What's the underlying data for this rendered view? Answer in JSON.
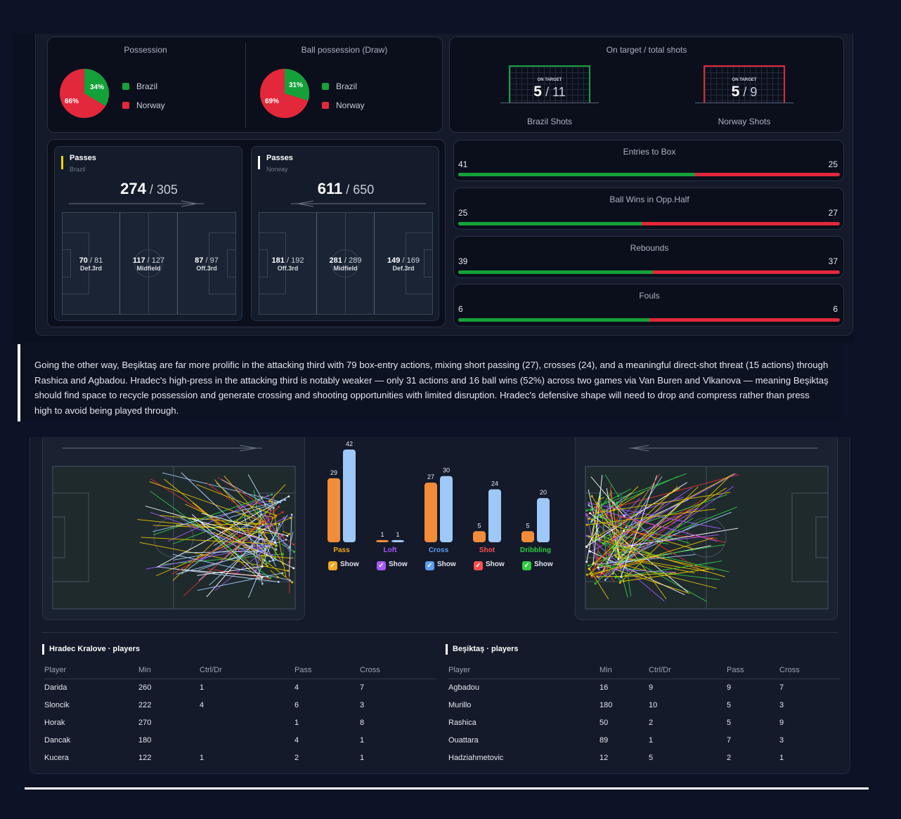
{
  "possession": {
    "title": "Possession",
    "brazil_pct": "34%",
    "norway_pct": "66%",
    "legend_brazil": "Brazil",
    "legend_norway": "Norway"
  },
  "ball_possession": {
    "title": "Ball possession (Draw)",
    "brazil_pct": "31%",
    "norway_pct": "69%",
    "legend_brazil": "Brazil",
    "legend_norway": "Norway"
  },
  "shots": {
    "title": "On target / total shots",
    "brazil": {
      "badge": "ON TARGET",
      "on_target": "5",
      "total": "11",
      "label": "Brazil Shots"
    },
    "norway": {
      "badge": "ON TARGET",
      "on_target": "5",
      "total": "9",
      "label": "Norway Shots"
    }
  },
  "passes_brazil": {
    "title": "Passes",
    "team": "Brazil",
    "completed": "274",
    "total": "305",
    "zones": [
      {
        "val": "70",
        "of": "81",
        "label": "Def.3rd"
      },
      {
        "val": "117",
        "of": "127",
        "label": "Midfield"
      },
      {
        "val": "87",
        "of": "97",
        "label": "Off.3rd"
      }
    ]
  },
  "passes_norway": {
    "title": "Passes",
    "team": "Norway",
    "completed": "611",
    "total": "650",
    "zones": [
      {
        "val": "181",
        "of": "192",
        "label": "Off.3rd"
      },
      {
        "val": "281",
        "of": "289",
        "label": "Midfield"
      },
      {
        "val": "149",
        "of": "169",
        "label": "Def.3rd"
      }
    ]
  },
  "stat_bars": [
    {
      "title": "Entries to Box",
      "left": "41",
      "right": "25",
      "green_fraction": 0.62
    },
    {
      "title": "Ball Wins in Opp.Half",
      "left": "25",
      "right": "27",
      "green_fraction": 0.48
    },
    {
      "title": "Rebounds",
      "left": "39",
      "right": "37",
      "green_fraction": 0.51
    },
    {
      "title": "Fouls",
      "left": "6",
      "right": "6",
      "green_fraction": 0.5
    }
  ],
  "paragraph": "Going the other way, Beşiktaş are far more prolific in the attacking third with 79 box-entry actions, mixing short passing (27), crosses (24), and a meaningful direct-shot threat (15 actions) through Rashica and Agbadou. Hradec's high-press in the attacking third is notably weaker — only 31 actions and 16 ball wins (52%) across two games via Van Buren and Vlkanova — meaning Beşiktaş should find space to recycle possession and generate crossing and shooting opportunities with limited disruption. Hradec's defensive shape will need to drop and compress rather than press high to avoid being played through.",
  "chart_data": {
    "type": "bar",
    "categories": [
      "Pass",
      "Loft",
      "Cross",
      "Shot",
      "Dribbling"
    ],
    "series": [
      {
        "values": [
          29,
          1,
          27,
          5,
          5
        ]
      },
      {
        "values": [
          42,
          1,
          30,
          24,
          20
        ]
      }
    ],
    "ylim": [
      0,
      42
    ],
    "category_colors": [
      "#f5a623",
      "#a259ff",
      "#5b9df5",
      "#ff4d4d",
      "#2ecc40"
    ],
    "series_colors": [
      "#f28c38",
      "#9ec8f7"
    ],
    "toggle_label": "Show"
  },
  "hradec_table": {
    "title": "Hradec Kralove · players",
    "headers": [
      "Player",
      "Min",
      "Ctrl/Dr",
      "Pass",
      "Cross"
    ],
    "rows": [
      [
        "Darida",
        "260",
        "1",
        "4",
        "7"
      ],
      [
        "Sloncik",
        "222",
        "4",
        "6",
        "3"
      ],
      [
        "Horak",
        "270",
        "",
        "1",
        "8"
      ],
      [
        "Dancak",
        "180",
        "",
        "4",
        "1"
      ],
      [
        "Kucera",
        "122",
        "1",
        "2",
        "1"
      ]
    ]
  },
  "besiktas_table": {
    "title": "Beşiktaş · players",
    "headers": [
      "Player",
      "Min",
      "Ctrl/Dr",
      "Pass",
      "Cross"
    ],
    "rows": [
      [
        "Agbadou",
        "16",
        "9",
        "9",
        "7"
      ],
      [
        "Murillo",
        "180",
        "10",
        "5",
        "3"
      ],
      [
        "Rashica",
        "50",
        "2",
        "5",
        "9"
      ],
      [
        "Ouattara",
        "89",
        "1",
        "7",
        "3"
      ],
      [
        "Hadziahmetovic",
        "12",
        "5",
        "2",
        "1"
      ]
    ]
  },
  "colors": {
    "brazil_green": "#15a13a",
    "norway_red": "#e2283a"
  }
}
